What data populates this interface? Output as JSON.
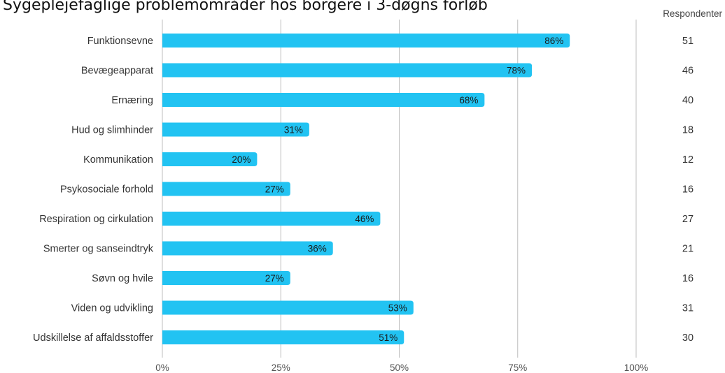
{
  "chart_data": {
    "type": "bar",
    "orientation": "horizontal",
    "title": "Sygeplejefaglige problemområder hos borgere i 3-døgns forløb",
    "categories": [
      "Funktionsevne",
      "Bevægeapparat",
      "Ernæring",
      "Hud og slimhinder",
      "Kommunikation",
      "Psykosociale forhold",
      "Respiration og cirkulation",
      "Smerter og sanseindtryk",
      "Søvn og hvile",
      "Viden og udvikling",
      "Udskillelse af affaldsstoffer"
    ],
    "values": [
      86,
      78,
      68,
      31,
      20,
      27,
      46,
      36,
      27,
      53,
      51
    ],
    "value_labels": [
      "86%",
      "78%",
      "68%",
      "31%",
      "20%",
      "27%",
      "46%",
      "36%",
      "27%",
      "53%",
      "51%"
    ],
    "respondents_header": "Respondenter",
    "respondents": [
      "51",
      "46",
      "40",
      "18",
      "12",
      "16",
      "27",
      "21",
      "16",
      "31",
      "30"
    ],
    "xticks": [
      0,
      25,
      50,
      75,
      100
    ],
    "xtick_labels": [
      "0%",
      "25%",
      "50%",
      "75%",
      "100%"
    ],
    "xlim": [
      0,
      100
    ],
    "grid": true,
    "bar_color": "#22C3F2",
    "grid_color": "#BDBDBD"
  }
}
